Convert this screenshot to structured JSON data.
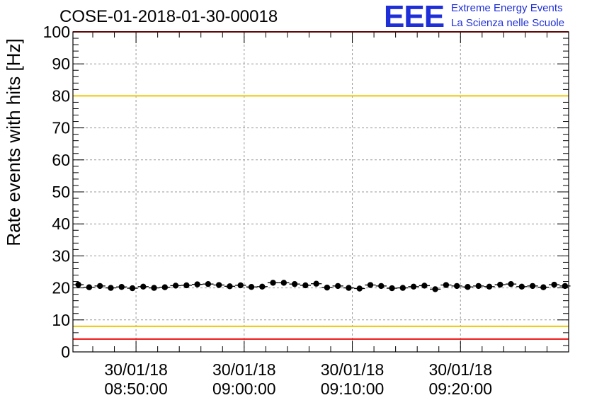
{
  "header": {
    "title": "COSE-01-2018-01-30-00018",
    "logo_mark": "EEE",
    "logo_line1": "Extreme Energy Events",
    "logo_line2": "La Scienza nelle Scuole",
    "logo_color": "#1f2fd8"
  },
  "chart_data": {
    "type": "scatter",
    "title": "COSE-01-2018-01-30-00018",
    "xlabel": "",
    "ylabel": "Rate events with hits [Hz]",
    "xlim": [
      "08:44:10",
      "09:30:00"
    ],
    "ylim": [
      0,
      100
    ],
    "grid": true,
    "yticks": [
      0,
      10,
      20,
      30,
      40,
      50,
      60,
      70,
      80,
      90,
      100
    ],
    "xticks": [
      {
        "time": "08:50:00",
        "date": "30/01/18",
        "label": "08:50:00"
      },
      {
        "time": "09:00:00",
        "date": "30/01/18",
        "label": "09:00:00"
      },
      {
        "time": "09:10:00",
        "date": "30/01/18",
        "label": "09:10:00"
      },
      {
        "time": "09:20:00",
        "date": "30/01/18",
        "label": "09:20:00"
      }
    ],
    "reference_lines": [
      {
        "y": 100,
        "color": "#ee1111"
      },
      {
        "y": 80,
        "color": "#f0c800"
      },
      {
        "y": 8,
        "color": "#f0c800"
      },
      {
        "y": 4,
        "color": "#ee1111"
      }
    ],
    "series": [
      {
        "marker_color": "#000000",
        "x": [
          "08:44:40",
          "08:45:40",
          "08:46:40",
          "08:47:40",
          "08:48:40",
          "08:49:40",
          "08:50:40",
          "08:51:40",
          "08:52:40",
          "08:53:40",
          "08:54:40",
          "08:55:40",
          "08:56:40",
          "08:57:40",
          "08:58:40",
          "08:59:40",
          "09:00:40",
          "09:01:40",
          "09:02:40",
          "09:03:40",
          "09:04:40",
          "09:05:40",
          "09:06:40",
          "09:07:40",
          "09:08:40",
          "09:09:40",
          "09:10:40",
          "09:11:40",
          "09:12:40",
          "09:13:40",
          "09:14:40",
          "09:15:40",
          "09:16:40",
          "09:17:40",
          "09:18:40",
          "09:19:40",
          "09:20:40",
          "09:21:40",
          "09:22:40",
          "09:23:40",
          "09:24:40",
          "09:25:40",
          "09:26:40",
          "09:27:40",
          "09:28:40",
          "09:29:40"
        ],
        "y": [
          21.0,
          20.2,
          20.6,
          20.0,
          20.3,
          19.9,
          20.4,
          20.0,
          20.2,
          20.7,
          20.8,
          21.1,
          21.2,
          20.9,
          20.5,
          20.8,
          20.3,
          20.4,
          21.6,
          21.6,
          21.2,
          20.8,
          21.3,
          20.1,
          20.6,
          20.0,
          19.8,
          20.9,
          20.6,
          19.9,
          20.0,
          20.4,
          20.7,
          19.6,
          20.9,
          20.6,
          20.3,
          20.6,
          20.4,
          21.0,
          21.2,
          20.4,
          20.6,
          20.2,
          21.0,
          20.6
        ]
      }
    ]
  }
}
